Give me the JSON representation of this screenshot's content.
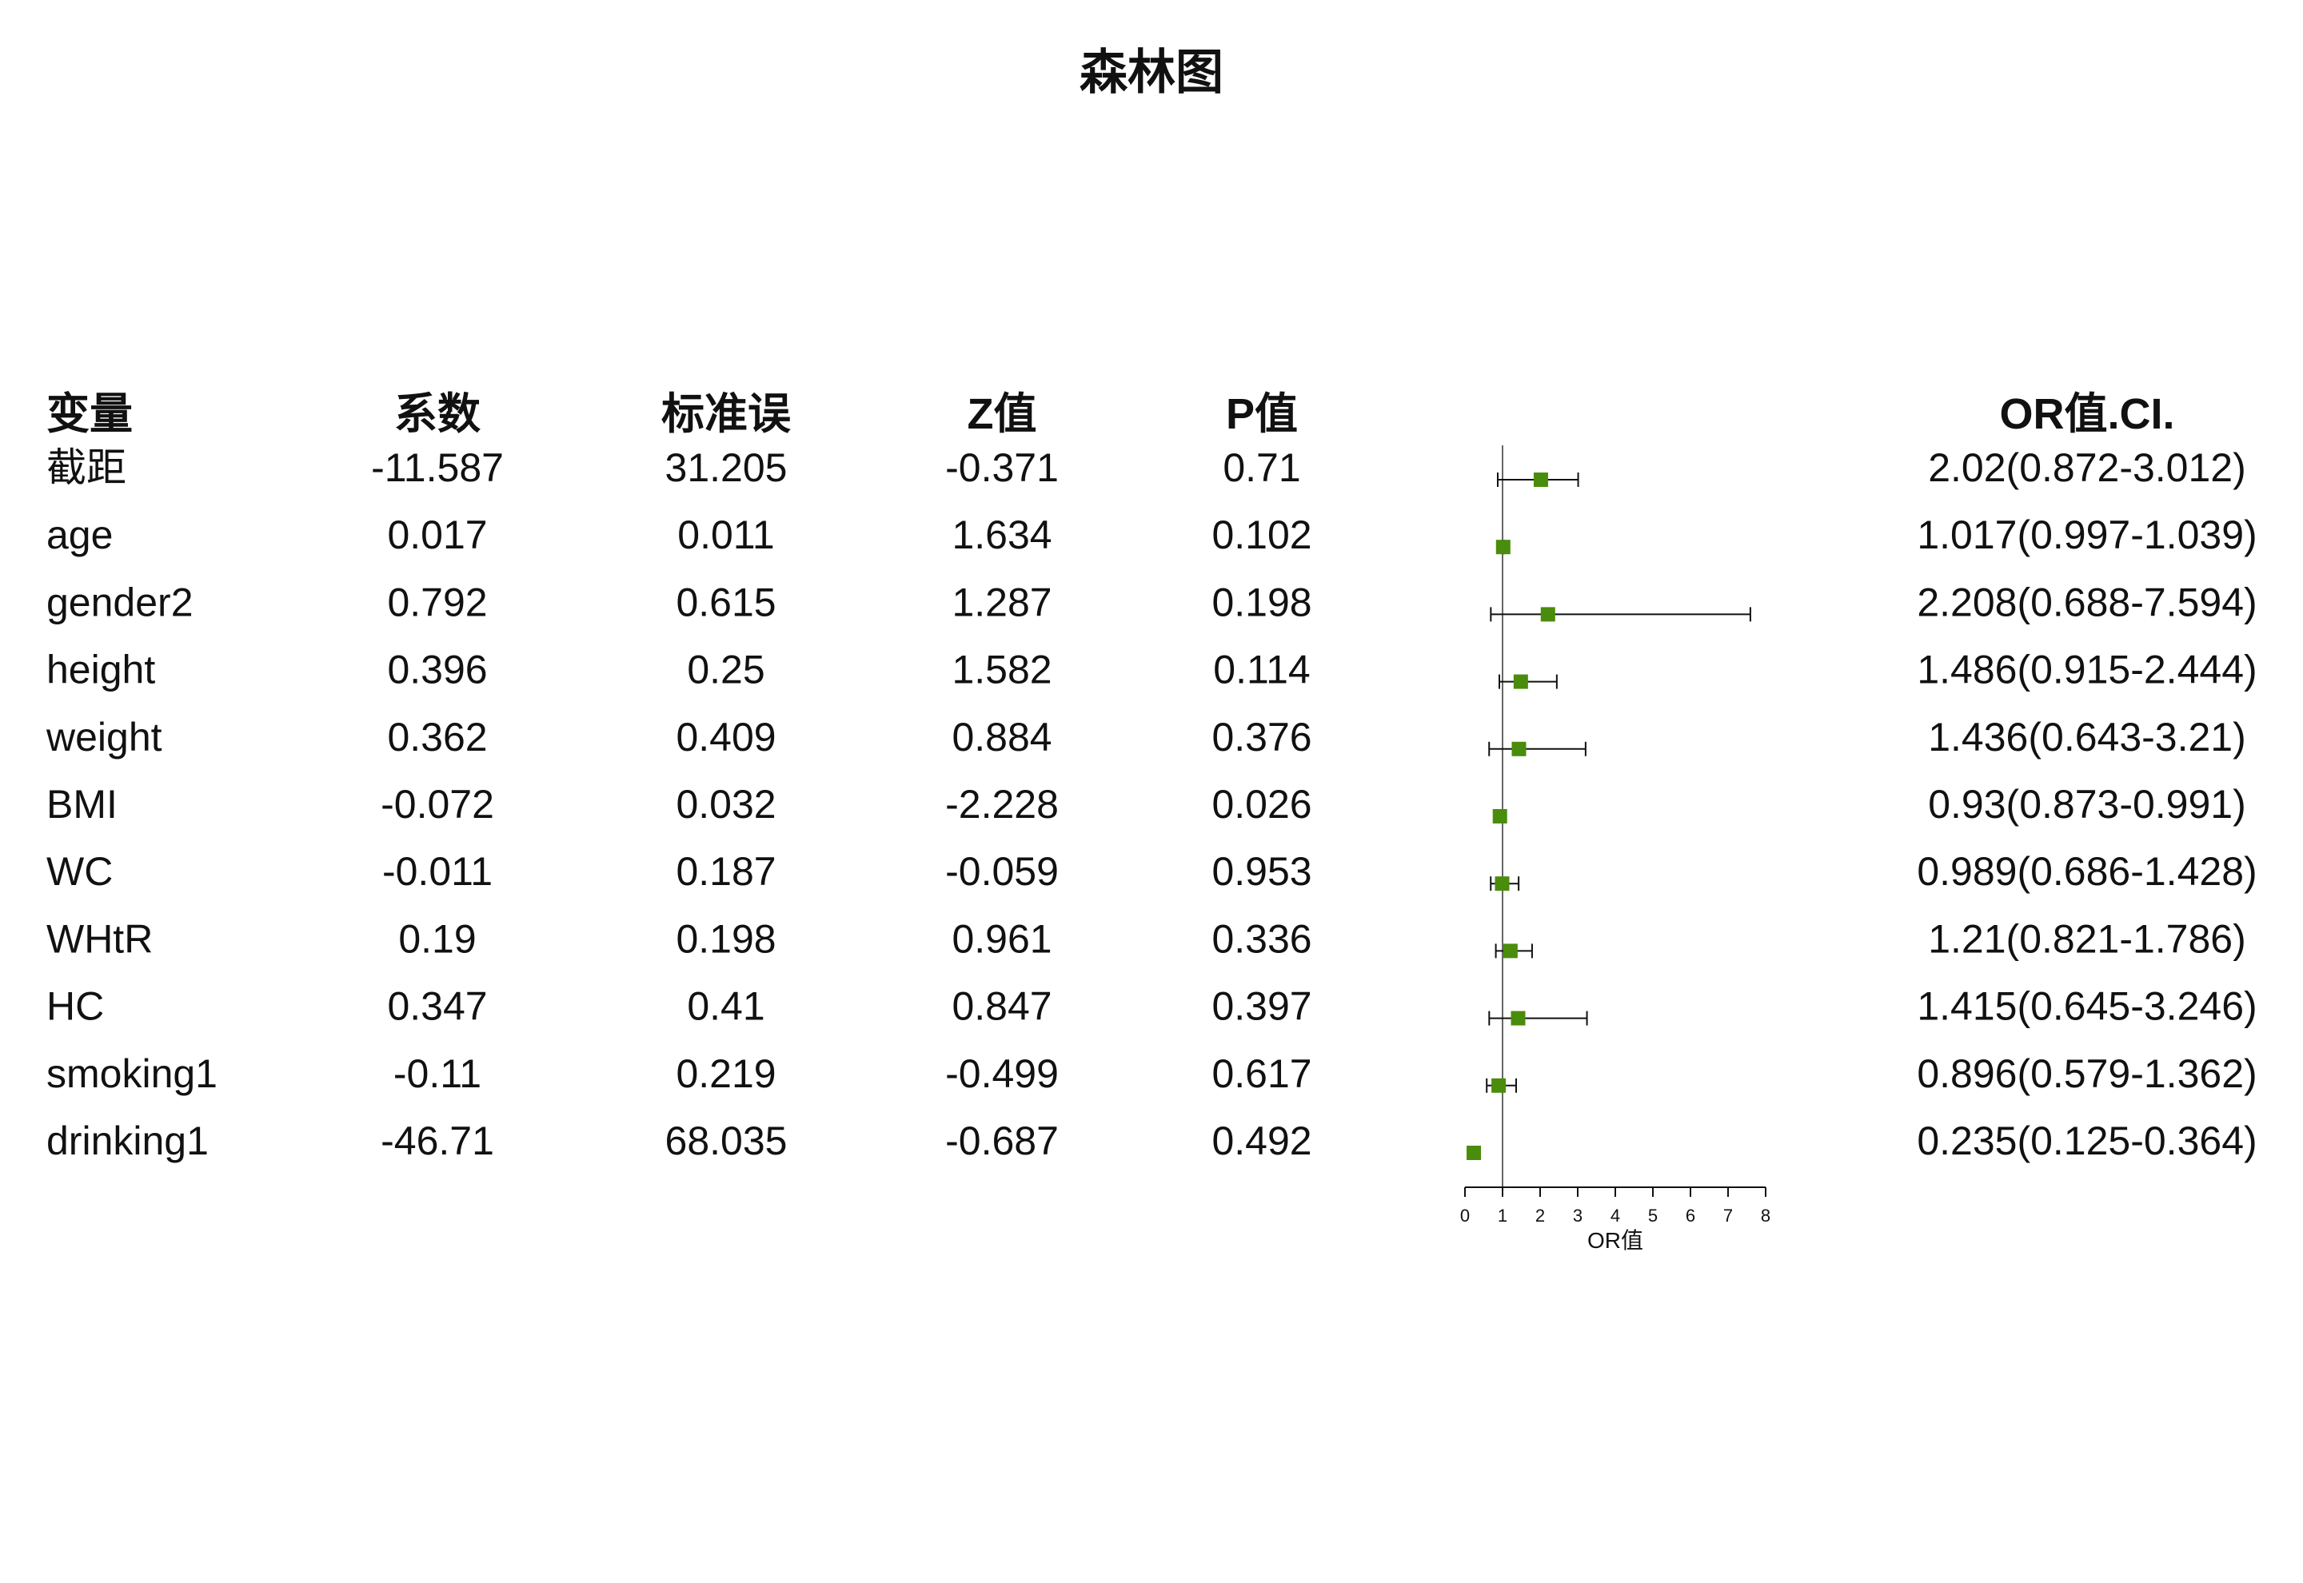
{
  "chart_data": {
    "type": "forest",
    "title": "森林图",
    "columns": [
      "变量",
      "系数",
      "标准误",
      "Z值",
      "P值",
      "OR值.CI."
    ],
    "rows": [
      {
        "label": "截距",
        "coef": "-11.587",
        "se": "31.205",
        "z": "-0.371",
        "p": "0.71",
        "or_ci": "2.02(0.872-3.012)",
        "or": 2.02,
        "lo": 0.872,
        "hi": 3.012
      },
      {
        "label": "age",
        "coef": "0.017",
        "se": "0.011",
        "z": "1.634",
        "p": "0.102",
        "or_ci": "1.017(0.997-1.039)",
        "or": 1.017,
        "lo": 0.997,
        "hi": 1.039
      },
      {
        "label": "gender2",
        "coef": "0.792",
        "se": "0.615",
        "z": "1.287",
        "p": "0.198",
        "or_ci": "2.208(0.688-7.594)",
        "or": 2.208,
        "lo": 0.688,
        "hi": 7.594
      },
      {
        "label": "height",
        "coef": "0.396",
        "se": "0.25",
        "z": "1.582",
        "p": "0.114",
        "or_ci": "1.486(0.915-2.444)",
        "or": 1.486,
        "lo": 0.915,
        "hi": 2.444
      },
      {
        "label": "weight",
        "coef": "0.362",
        "se": "0.409",
        "z": "0.884",
        "p": "0.376",
        "or_ci": "1.436(0.643-3.21)",
        "or": 1.436,
        "lo": 0.643,
        "hi": 3.21
      },
      {
        "label": "BMI",
        "coef": "-0.072",
        "se": "0.032",
        "z": "-2.228",
        "p": "0.026",
        "or_ci": "0.93(0.873-0.991)",
        "or": 0.93,
        "lo": 0.873,
        "hi": 0.991
      },
      {
        "label": "WC",
        "coef": "-0.011",
        "se": "0.187",
        "z": "-0.059",
        "p": "0.953",
        "or_ci": "0.989(0.686-1.428)",
        "or": 0.989,
        "lo": 0.686,
        "hi": 1.428
      },
      {
        "label": "WHtR",
        "coef": "0.19",
        "se": "0.198",
        "z": "0.961",
        "p": "0.336",
        "or_ci": "1.21(0.821-1.786)",
        "or": 1.21,
        "lo": 0.821,
        "hi": 1.786
      },
      {
        "label": "HC",
        "coef": "0.347",
        "se": "0.41",
        "z": "0.847",
        "p": "0.397",
        "or_ci": "1.415(0.645-3.246)",
        "or": 1.415,
        "lo": 0.645,
        "hi": 3.246
      },
      {
        "label": "smoking1",
        "coef": "-0.11",
        "se": "0.219",
        "z": "-0.499",
        "p": "0.617",
        "or_ci": "0.896(0.579-1.362)",
        "or": 0.896,
        "lo": 0.579,
        "hi": 1.362
      },
      {
        "label": "drinking1",
        "coef": "-46.71",
        "se": "68.035",
        "z": "-0.687",
        "p": "0.492",
        "or_ci": "0.235(0.125-0.364)",
        "or": 0.235,
        "lo": 0.125,
        "hi": 0.364
      }
    ],
    "x_axis": {
      "label": "OR值",
      "ticks": [
        "0",
        "1",
        "2",
        "3",
        "4",
        "5",
        "6",
        "7",
        "8"
      ],
      "range": [
        0,
        8
      ],
      "reference_line": 1
    },
    "marker_color": "#4a8c0c",
    "grid": false
  }
}
